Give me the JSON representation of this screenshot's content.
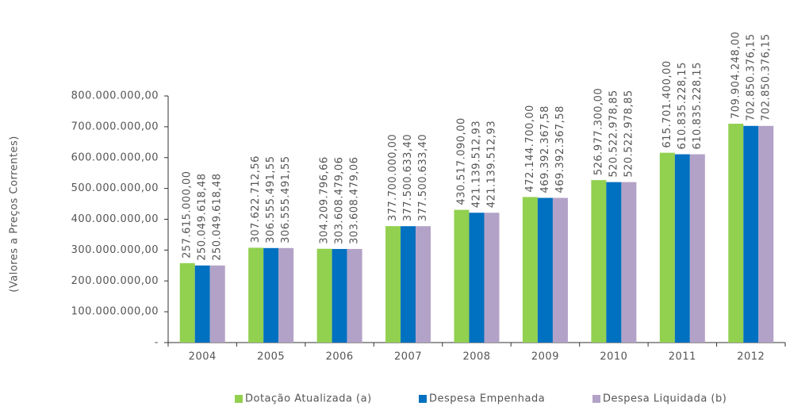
{
  "chart_data": {
    "type": "bar",
    "y_label": "(Valores a Preços Correntes)",
    "categories": [
      "2004",
      "2005",
      "2006",
      "2007",
      "2008",
      "2009",
      "2010",
      "2011",
      "2012"
    ],
    "series": [
      {
        "name": "Dotação Atualizada (a)",
        "color": "#92d050",
        "values": [
          257615000.0,
          307622712.56,
          304209796.66,
          377700000.0,
          430517090.0,
          472144700.0,
          526977300.0,
          615701400.0,
          709904248.0
        ],
        "value_labels": [
          "257.615.000,00",
          "307.622.712,56",
          "304.209.796,66",
          "377.700.000,00",
          "430.517.090,00",
          "472.144.700,00",
          "526.977.300,00",
          "615.701.400,00",
          "709.904.248,00"
        ]
      },
      {
        "name": "Despesa Empenhada",
        "color": "#0070c0",
        "values": [
          250049618.48,
          306555491.55,
          303608479.06,
          377500633.4,
          421139512.93,
          469392367.58,
          520522978.85,
          610835228.15,
          702850376.15
        ],
        "value_labels": [
          "250.049.618,48",
          "306.555.491,55",
          "303.608.479,06",
          "377.500.633,40",
          "421.139.512,93",
          "469.392.367,58",
          "520.522.978,85",
          "610.835.228,15",
          "702.850.376,15"
        ]
      },
      {
        "name": "Despesa Liquidada (b)",
        "color": "#b3a2c7",
        "values": [
          250049618.48,
          306555491.55,
          303608479.06,
          377500633.4,
          421139512.93,
          469392367.58,
          520522978.85,
          610835228.15,
          702850376.15
        ],
        "value_labels": [
          "250.049.618,48",
          "306.555.491,55",
          "303.608.479,06",
          "377.500.633,40",
          "421.139.512,93",
          "469.392.367,58",
          "520.522.978,85",
          "610.835.228,15",
          "702.850.376,15"
        ]
      }
    ],
    "ylim": [
      0,
      800000000
    ],
    "yticks": [
      {
        "value": 0,
        "label": "-"
      },
      {
        "value": 100000000,
        "label": "100.000.000,00"
      },
      {
        "value": 200000000,
        "label": "200.000.000,00"
      },
      {
        "value": 300000000,
        "label": "300.000.000,00"
      },
      {
        "value": 400000000,
        "label": "400.000.000,00"
      },
      {
        "value": 500000000,
        "label": "500.000.000,00"
      },
      {
        "value": 600000000,
        "label": "600.000.000,00"
      },
      {
        "value": 700000000,
        "label": "700.000.000,00"
      },
      {
        "value": 800000000,
        "label": "800.000.000,00"
      }
    ],
    "legend": "bottom"
  }
}
